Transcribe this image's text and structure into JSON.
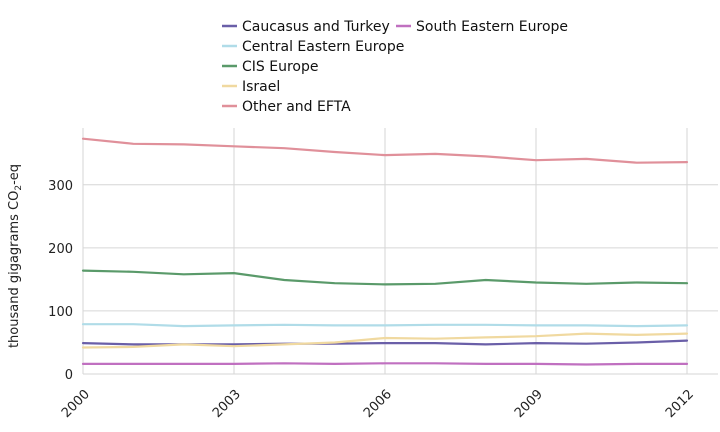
{
  "chart_data": {
    "type": "line",
    "title": "",
    "xlabel": "",
    "ylabel": "thousand gigagrams CO",
    "ylabel_subscript": "2",
    "ylabel_suffix": "-eq",
    "x": [
      2000,
      2001,
      2002,
      2003,
      2004,
      2005,
      2006,
      2007,
      2008,
      2009,
      2010,
      2011,
      2012
    ],
    "x_ticks": [
      "2000",
      "2003",
      "2006",
      "2009",
      "2012"
    ],
    "x_tick_values": [
      2000,
      2003,
      2006,
      2009,
      2012
    ],
    "y_ticks": [
      "0",
      "100",
      "200",
      "300"
    ],
    "y_tick_values": [
      0,
      100,
      200,
      300
    ],
    "xlim": [
      2000,
      2012
    ],
    "ylim": [
      0,
      390
    ],
    "grid": true,
    "legend_position": "top",
    "series": [
      {
        "name": "Caucasus and Turkey",
        "color": "#6a5fa8",
        "values": [
          49,
          47,
          47,
          47,
          48,
          48,
          49,
          49,
          47,
          49,
          48,
          50,
          53
        ]
      },
      {
        "name": "Central Eastern Europe",
        "color": "#b0dce8",
        "values": [
          79,
          79,
          76,
          77,
          78,
          77,
          77,
          78,
          78,
          77,
          77,
          76,
          77
        ]
      },
      {
        "name": "CIS Europe",
        "color": "#5a9a6a",
        "values": [
          164,
          162,
          158,
          160,
          149,
          144,
          142,
          143,
          149,
          145,
          143,
          145,
          144
        ]
      },
      {
        "name": "Israel",
        "color": "#f0d9a0",
        "values": [
          42,
          43,
          47,
          44,
          47,
          50,
          57,
          56,
          58,
          60,
          64,
          62,
          64
        ]
      },
      {
        "name": "Other and EFTA",
        "color": "#e0909a",
        "values": [
          373,
          365,
          364,
          361,
          358,
          352,
          347,
          349,
          345,
          339,
          341,
          335,
          336
        ]
      },
      {
        "name": "South Eastern Europe",
        "color": "#c070c0",
        "values": [
          16,
          16,
          16,
          16,
          17,
          16,
          17,
          17,
          16,
          16,
          15,
          16,
          16
        ]
      }
    ]
  }
}
